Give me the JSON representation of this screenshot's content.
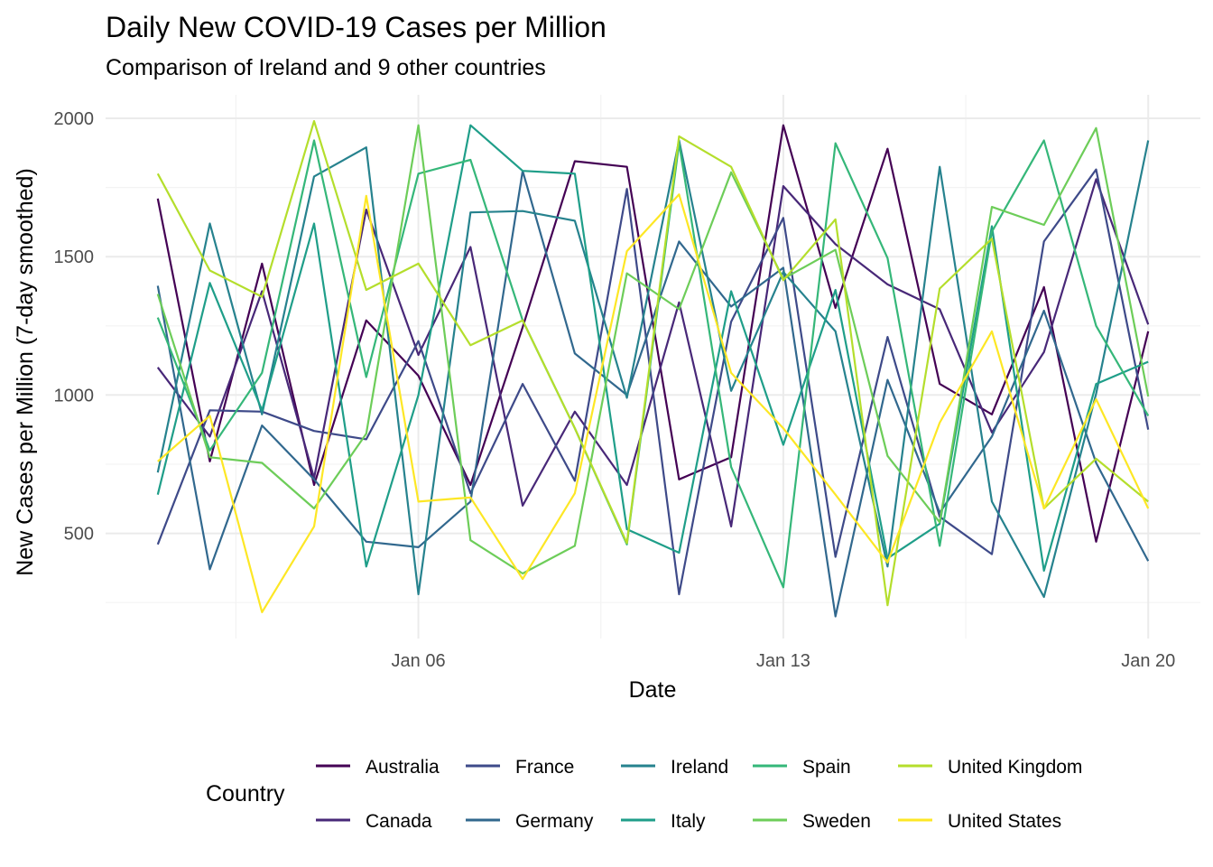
{
  "chart_data": {
    "type": "line",
    "title": "Daily New COVID-19 Cases per Million",
    "subtitle": "Comparison of Ireland and 9 other countries",
    "xlabel": "Date",
    "ylabel": "New Cases per Million (7-day smoothed)",
    "x": [
      "2021-01-01",
      "2021-01-02",
      "2021-01-03",
      "2021-01-04",
      "2021-01-05",
      "2021-01-06",
      "2021-01-07",
      "2021-01-08",
      "2021-01-09",
      "2021-01-10",
      "2021-01-11",
      "2021-01-12",
      "2021-01-13",
      "2021-01-14",
      "2021-01-15",
      "2021-01-16",
      "2021-01-17",
      "2021-01-18",
      "2021-01-19",
      "2021-01-20"
    ],
    "x_ticks": [
      "2021-01-06",
      "2021-01-13",
      "2021-01-20"
    ],
    "x_tick_labels": [
      "Jan 06",
      "Jan 13",
      "Jan 20"
    ],
    "xlim": [
      "2020-12-31",
      "2021-01-21"
    ],
    "y_ticks": [
      500,
      1000,
      1500,
      2000
    ],
    "y_tick_labels": [
      "500",
      "1000",
      "1500",
      "2000"
    ],
    "ylim": [
      120,
      2085
    ],
    "grid": true,
    "legend_title": "Country",
    "legend_position": "bottom",
    "series": [
      {
        "name": "Australia",
        "color": "#440154",
        "values": [
          1710,
          760,
          1475,
          675,
          1270,
          1070,
          675,
          1245,
          1845,
          1825,
          695,
          775,
          1975,
          1315,
          1890,
          1040,
          930,
          1390,
          470,
          1230
        ]
      },
      {
        "name": "Canada",
        "color": "#482878",
        "values": [
          1100,
          850,
          1375,
          700,
          1670,
          1145,
          1535,
          600,
          940,
          675,
          1335,
          525,
          1755,
          1545,
          1400,
          1310,
          865,
          1155,
          1780,
          1255
        ]
      },
      {
        "name": "France",
        "color": "#3E4A89",
        "values": [
          460,
          945,
          940,
          870,
          840,
          1195,
          645,
          1040,
          690,
          1745,
          280,
          1265,
          1640,
          415,
          1210,
          560,
          425,
          1555,
          1815,
          875
        ]
      },
      {
        "name": "Germany",
        "color": "#31688E",
        "values": [
          1395,
          370,
          890,
          695,
          470,
          450,
          615,
          1810,
          1150,
          1000,
          1555,
          1320,
          1460,
          200,
          1055,
          575,
          850,
          1305,
          755,
          400
        ]
      },
      {
        "name": "Ireland",
        "color": "#26828E",
        "values": [
          720,
          1620,
          930,
          1790,
          1895,
          280,
          1660,
          1665,
          1630,
          990,
          1920,
          1015,
          1445,
          1230,
          380,
          1825,
          615,
          270,
          1005,
          1920
        ]
      },
      {
        "name": "Italy",
        "color": "#1F9E89",
        "values": [
          640,
          1405,
          945,
          1620,
          380,
          1000,
          1975,
          1810,
          1800,
          515,
          430,
          1375,
          820,
          1380,
          410,
          535,
          1610,
          365,
          1040,
          1120
        ]
      },
      {
        "name": "Spain",
        "color": "#35B779",
        "values": [
          1280,
          800,
          1080,
          1920,
          1065,
          1800,
          1850,
          1270,
          880,
          460,
          1910,
          740,
          305,
          1910,
          1495,
          455,
          1590,
          1920,
          1250,
          925
        ]
      },
      {
        "name": "Sweden",
        "color": "#6DCD59",
        "values": [
          1365,
          775,
          755,
          590,
          860,
          1975,
          475,
          355,
          455,
          1440,
          1310,
          1805,
          1420,
          1525,
          780,
          540,
          1680,
          1615,
          1965,
          995
        ]
      },
      {
        "name": "United Kingdom",
        "color": "#B4DE2C",
        "values": [
          1800,
          1450,
          1355,
          1990,
          1380,
          1475,
          1180,
          1270,
          880,
          465,
          1935,
          1825,
          1415,
          1635,
          240,
          1385,
          1565,
          590,
          770,
          615
        ]
      },
      {
        "name": "United States",
        "color": "#FDE725",
        "values": [
          760,
          925,
          215,
          525,
          1720,
          615,
          630,
          335,
          645,
          1520,
          1725,
          1080,
          880,
          640,
          395,
          900,
          1230,
          590,
          985,
          590
        ]
      }
    ]
  }
}
